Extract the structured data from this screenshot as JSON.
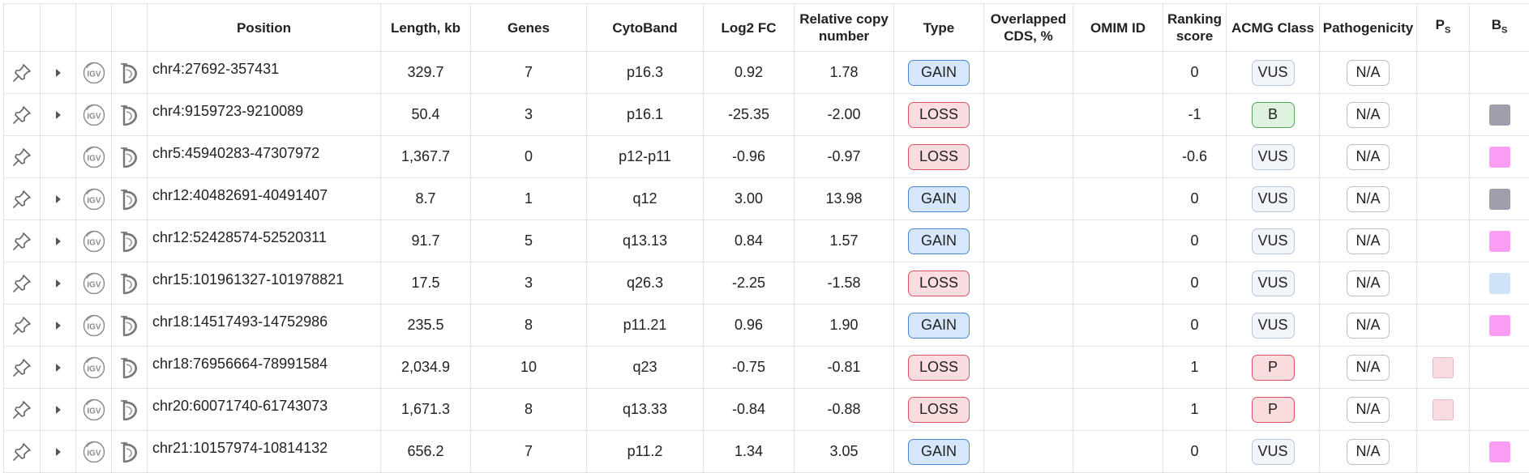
{
  "headers": {
    "position": "Position",
    "length": "Length, kb",
    "genes": "Genes",
    "cytoband": "CytoBand",
    "log2fc": "Log2 FC",
    "relcopy_l1": "Relative copy",
    "relcopy_l2": "number",
    "type": "Type",
    "overlap_l1": "Overlapped",
    "overlap_l2": "CDS, %",
    "omim": "OMIM ID",
    "ranking_l1": "Ranking",
    "ranking_l2": "score",
    "acmg": "ACMG Class",
    "patho": "Pathogenicity",
    "ps_main": "P",
    "ps_sub": "S",
    "bs_main": "B",
    "bs_sub": "S"
  },
  "icons": {
    "pin": "pin-icon",
    "expand": "chevron-right-icon",
    "igv": "igv-icon",
    "decipher": "decipher-icon",
    "igv_label": "IGV"
  },
  "colors": {
    "gain_bg": "#d6e6fb",
    "loss_bg": "#fbdcdf",
    "swatch_gray": "#9e9eac",
    "swatch_magenta": "#fb9cf5",
    "swatch_lightblue": "#cfe2f7",
    "swatch_pink": "#f8dce1"
  },
  "rows": [
    {
      "expand": true,
      "position": "chr4:27692-357431",
      "length": "329.7",
      "genes": "7",
      "cytoband": "p16.3",
      "log2fc": "0.92",
      "relcopy": "1.78",
      "type": "GAIN",
      "overlap": "",
      "omim": "",
      "ranking": "0",
      "acmg": "VUS",
      "patho": "N/A",
      "ps": "",
      "bs": ""
    },
    {
      "expand": true,
      "position": "chr4:9159723-9210089",
      "length": "50.4",
      "genes": "3",
      "cytoband": "p16.1",
      "log2fc": "-25.35",
      "relcopy": "-2.00",
      "type": "LOSS",
      "overlap": "",
      "omim": "",
      "ranking": "-1",
      "acmg": "B",
      "patho": "N/A",
      "ps": "",
      "bs": "#9e9eac"
    },
    {
      "expand": false,
      "position": "chr5:45940283-47307972",
      "length": "1,367.7",
      "genes": "0",
      "cytoband": "p12-p11",
      "log2fc": "-0.96",
      "relcopy": "-0.97",
      "type": "LOSS",
      "overlap": "",
      "omim": "",
      "ranking": "-0.6",
      "acmg": "VUS",
      "patho": "N/A",
      "ps": "",
      "bs": "#fb9cf5"
    },
    {
      "expand": true,
      "position": "chr12:40482691-40491407",
      "length": "8.7",
      "genes": "1",
      "cytoband": "q12",
      "log2fc": "3.00",
      "relcopy": "13.98",
      "type": "GAIN",
      "overlap": "",
      "omim": "",
      "ranking": "0",
      "acmg": "VUS",
      "patho": "N/A",
      "ps": "",
      "bs": "#9e9eac"
    },
    {
      "expand": true,
      "position": "chr12:52428574-52520311",
      "length": "91.7",
      "genes": "5",
      "cytoband": "q13.13",
      "log2fc": "0.84",
      "relcopy": "1.57",
      "type": "GAIN",
      "overlap": "",
      "omim": "",
      "ranking": "0",
      "acmg": "VUS",
      "patho": "N/A",
      "ps": "",
      "bs": "#fb9cf5"
    },
    {
      "expand": true,
      "position": "chr15:101961327-101978821",
      "length": "17.5",
      "genes": "3",
      "cytoband": "q26.3",
      "log2fc": "-2.25",
      "relcopy": "-1.58",
      "type": "LOSS",
      "overlap": "",
      "omim": "",
      "ranking": "0",
      "acmg": "VUS",
      "patho": "N/A",
      "ps": "",
      "bs": "#cfe2f7"
    },
    {
      "expand": true,
      "position": "chr18:14517493-14752986",
      "length": "235.5",
      "genes": "8",
      "cytoband": "p11.21",
      "log2fc": "0.96",
      "relcopy": "1.90",
      "type": "GAIN",
      "overlap": "",
      "omim": "",
      "ranking": "0",
      "acmg": "VUS",
      "patho": "N/A",
      "ps": "",
      "bs": "#fb9cf5"
    },
    {
      "expand": true,
      "position": "chr18:76956664-78991584",
      "length": "2,034.9",
      "genes": "10",
      "cytoband": "q23",
      "log2fc": "-0.75",
      "relcopy": "-0.81",
      "type": "LOSS",
      "overlap": "",
      "omim": "",
      "ranking": "1",
      "acmg": "P",
      "patho": "N/A",
      "ps": "#f8dce1",
      "bs": ""
    },
    {
      "expand": true,
      "position": "chr20:60071740-61743073",
      "length": "1,671.3",
      "genes": "8",
      "cytoband": "q13.33",
      "log2fc": "-0.84",
      "relcopy": "-0.88",
      "type": "LOSS",
      "overlap": "",
      "omim": "",
      "ranking": "1",
      "acmg": "P",
      "patho": "N/A",
      "ps": "#f8dce1",
      "bs": ""
    },
    {
      "expand": true,
      "position": "chr21:10157974-10814132",
      "length": "656.2",
      "genes": "7",
      "cytoband": "p11.2",
      "log2fc": "1.34",
      "relcopy": "3.05",
      "type": "GAIN",
      "overlap": "",
      "omim": "",
      "ranking": "0",
      "acmg": "VUS",
      "patho": "N/A",
      "ps": "",
      "bs": "#fb9cf5"
    }
  ]
}
